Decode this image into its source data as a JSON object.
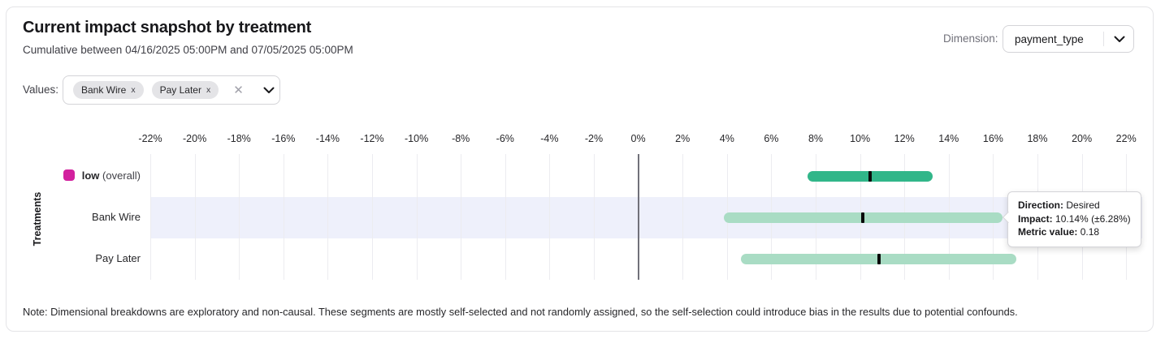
{
  "header": {
    "title": "Current impact snapshot by treatment",
    "subtitle": "Cumulative between 04/16/2025 05:00PM and 07/05/2025 05:00PM",
    "dimension_label": "Dimension:",
    "dimension_value": "payment_type"
  },
  "filters": {
    "values_label": "Values:",
    "chips": [
      {
        "label": "Bank Wire",
        "remove_icon": "x"
      },
      {
        "label": "Pay Later",
        "remove_icon": "x"
      }
    ],
    "clear_icon": "✕"
  },
  "colors": {
    "legend_swatch": "#d2219e",
    "bar_primary": "#31b689",
    "bar_secondary": "#a9dcc4",
    "marker": "#0a0a0a",
    "highlight_stripe": "#eef0fb",
    "zero_line": "#71717a",
    "gridline": "#ececf0"
  },
  "chart_data": {
    "type": "bar",
    "subtype": "horizontal-range-bars-with-confidence-intervals",
    "title": "Current impact snapshot by treatment",
    "xlabel": "",
    "ylabel": "Treatments",
    "x_axis": {
      "min": -22,
      "max": 22,
      "step": 2,
      "unit": "%",
      "tick_labels": [
        "-22%",
        "-20%",
        "-18%",
        "-16%",
        "-14%",
        "-12%",
        "-10%",
        "-8%",
        "-6%",
        "-4%",
        "-2%",
        "0%",
        "2%",
        "4%",
        "6%",
        "8%",
        "10%",
        "12%",
        "14%",
        "16%",
        "18%",
        "20%",
        "22%"
      ]
    },
    "grid": true,
    "rows": [
      {
        "label": "low",
        "label_suffix": "(overall)",
        "impact_pct": 10.45,
        "ci_pct": 2.83,
        "bar_color": "#31b689",
        "highlighted": false
      },
      {
        "label": "Bank Wire",
        "label_suffix": "",
        "impact_pct": 10.14,
        "ci_pct": 6.28,
        "bar_color": "#a9dcc4",
        "highlighted": true
      },
      {
        "label": "Pay Later",
        "label_suffix": "",
        "impact_pct": 10.84,
        "ci_pct": 6.2,
        "bar_color": "#a9dcc4",
        "highlighted": false
      }
    ]
  },
  "tooltip": {
    "direction_label": "Direction:",
    "direction_value": "Desired",
    "impact_label": "Impact:",
    "impact_value": "10.14% (±6.28%)",
    "metric_label": "Metric value:",
    "metric_value": "0.18"
  },
  "note": "Note: Dimensional breakdowns are exploratory and non-causal. These segments are mostly self-selected and not randomly assigned, so the self-selection could introduce bias in the results due to potential confounds."
}
